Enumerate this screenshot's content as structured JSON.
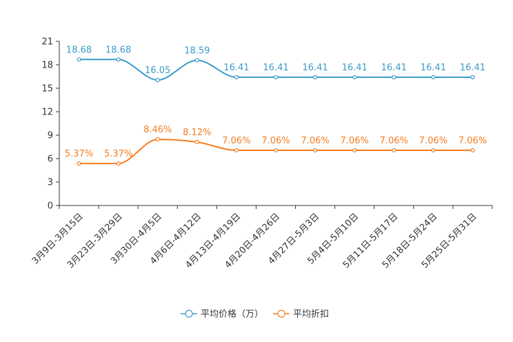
{
  "chart_data": {
    "type": "line",
    "categories": [
      "3月9日-3月15日",
      "3月23日-3月29日",
      "3月30日-4月5日",
      "4月6日-4月12日",
      "4月13日-4月19日",
      "4月20日-4月26日",
      "4月27日-5月3日",
      "5月4日-5月10日",
      "5月11日-5月17日",
      "5月18日-5月24日",
      "5月25日-5月31日"
    ],
    "ylim": [
      0,
      21
    ],
    "yticks": [
      0,
      3,
      6,
      9,
      12,
      15,
      18,
      21
    ],
    "ytick_labels": [
      "0",
      "3",
      "6",
      "9",
      "12",
      "15",
      "18",
      "21"
    ],
    "series": [
      {
        "name": "平均价格（万）",
        "color": "#3a9bc9",
        "values": [
          18.68,
          18.68,
          16.05,
          18.59,
          16.41,
          16.41,
          16.41,
          16.41,
          16.41,
          16.41,
          16.41
        ],
        "labels": [
          "18.68",
          "18.68",
          "16.05",
          "18.59",
          "16.41",
          "16.41",
          "16.41",
          "16.41",
          "16.41",
          "16.41",
          "16.41"
        ]
      },
      {
        "name": "平均折扣",
        "color": "#f57c1f",
        "values": [
          5.37,
          5.37,
          8.46,
          8.12,
          7.06,
          7.06,
          7.06,
          7.06,
          7.06,
          7.06,
          7.06
        ],
        "labels": [
          "5.37%",
          "5.37%",
          "8.46%",
          "8.12%",
          "7.06%",
          "7.06%",
          "7.06%",
          "7.06%",
          "7.06%",
          "7.06%",
          "7.06%"
        ]
      }
    ],
    "title": "",
    "xlabel": "",
    "ylabel": "",
    "legend_position": "bottom-center",
    "grid": false
  }
}
